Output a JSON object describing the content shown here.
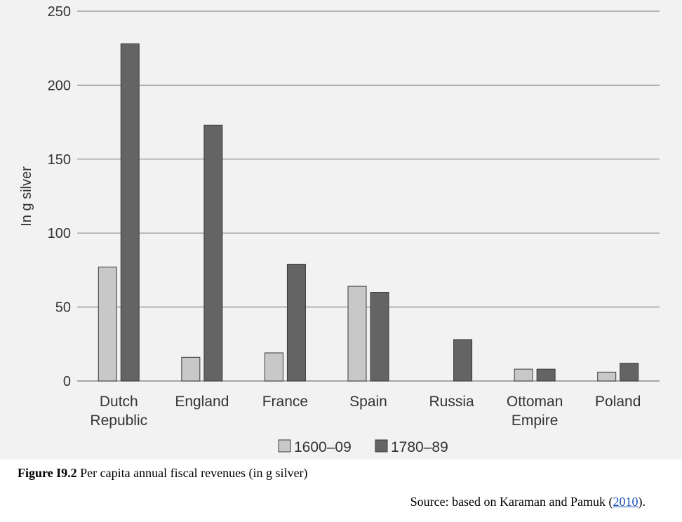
{
  "chart_data": {
    "type": "bar",
    "ylabel": "In g silver",
    "ylim": [
      0,
      250
    ],
    "yticks": [
      0,
      50,
      100,
      150,
      200,
      250
    ],
    "grid": true,
    "legend_position": "bottom-center",
    "categories": [
      [
        "Dutch",
        "Republic"
      ],
      [
        "England"
      ],
      [
        "France"
      ],
      [
        "Spain"
      ],
      [
        "Russia"
      ],
      [
        "Ottoman",
        "Empire"
      ],
      [
        "Poland"
      ]
    ],
    "series": [
      {
        "name": "1600–09",
        "color": "#c8c8c8",
        "values": [
          77,
          16,
          19,
          64,
          null,
          8,
          6
        ]
      },
      {
        "name": "1780–89",
        "color": "#646464",
        "values": [
          228,
          173,
          79,
          60,
          28,
          8,
          12
        ]
      }
    ]
  },
  "caption": {
    "label": "Figure I9.2",
    "text": " Per capita annual fiscal revenues (in g silver)"
  },
  "source": {
    "prefix": "Source: based on Karaman and Pamuk (",
    "link": "2010",
    "suffix": ")."
  }
}
